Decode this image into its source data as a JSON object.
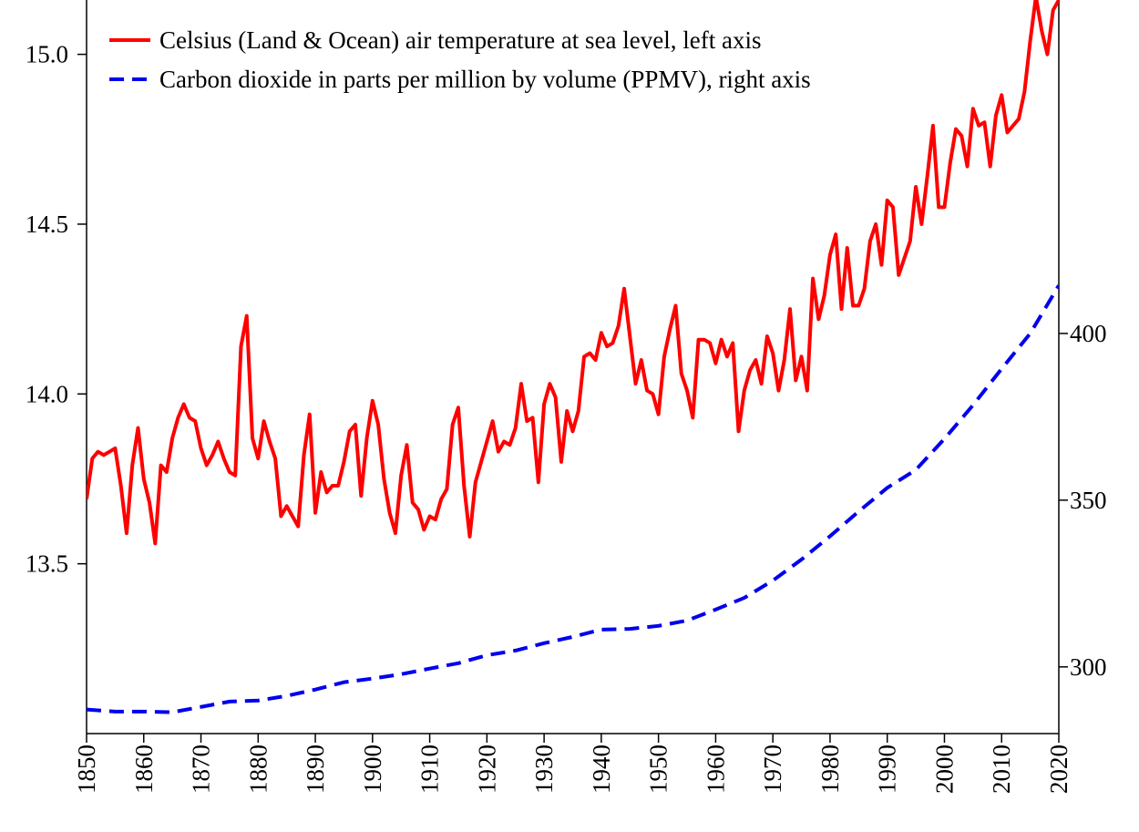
{
  "chart_data": {
    "type": "line",
    "x": [
      1850,
      1851,
      1852,
      1853,
      1854,
      1855,
      1856,
      1857,
      1858,
      1859,
      1860,
      1861,
      1862,
      1863,
      1864,
      1865,
      1866,
      1867,
      1868,
      1869,
      1870,
      1871,
      1872,
      1873,
      1874,
      1875,
      1876,
      1877,
      1878,
      1879,
      1880,
      1881,
      1882,
      1883,
      1884,
      1885,
      1886,
      1887,
      1888,
      1889,
      1890,
      1891,
      1892,
      1893,
      1894,
      1895,
      1896,
      1897,
      1898,
      1899,
      1900,
      1901,
      1902,
      1903,
      1904,
      1905,
      1906,
      1907,
      1908,
      1909,
      1910,
      1911,
      1912,
      1913,
      1914,
      1915,
      1916,
      1917,
      1918,
      1919,
      1920,
      1921,
      1922,
      1923,
      1924,
      1925,
      1926,
      1927,
      1928,
      1929,
      1930,
      1931,
      1932,
      1933,
      1934,
      1935,
      1936,
      1937,
      1938,
      1939,
      1940,
      1941,
      1942,
      1943,
      1944,
      1945,
      1946,
      1947,
      1948,
      1949,
      1950,
      1951,
      1952,
      1953,
      1954,
      1955,
      1956,
      1957,
      1958,
      1959,
      1960,
      1961,
      1962,
      1963,
      1964,
      1965,
      1966,
      1967,
      1968,
      1969,
      1970,
      1971,
      1972,
      1973,
      1974,
      1975,
      1976,
      1977,
      1978,
      1979,
      1980,
      1981,
      1982,
      1983,
      1984,
      1985,
      1986,
      1987,
      1988,
      1989,
      1990,
      1991,
      1992,
      1993,
      1994,
      1995,
      1996,
      1997,
      1998,
      1999,
      2000,
      2001,
      2002,
      2003,
      2004,
      2005,
      2006,
      2007,
      2008,
      2009,
      2010,
      2011,
      2012,
      2013,
      2014,
      2015,
      2016,
      2017,
      2018,
      2019,
      2020
    ],
    "series": [
      {
        "name": "Celsius (Land & Ocean) air temperature at sea level, left axis",
        "color": "#ff0000",
        "axis": "y",
        "style": "solid",
        "values": [
          13.69,
          13.81,
          13.83,
          13.82,
          13.83,
          13.84,
          13.73,
          13.59,
          13.79,
          13.9,
          13.75,
          13.68,
          13.56,
          13.79,
          13.77,
          13.87,
          13.93,
          13.97,
          13.93,
          13.92,
          13.84,
          13.79,
          13.82,
          13.86,
          13.81,
          13.77,
          13.76,
          14.14,
          14.23,
          13.87,
          13.81,
          13.92,
          13.86,
          13.81,
          13.64,
          13.67,
          13.64,
          13.61,
          13.82,
          13.94,
          13.65,
          13.77,
          13.71,
          13.73,
          13.73,
          13.8,
          13.89,
          13.91,
          13.7,
          13.87,
          13.98,
          13.91,
          13.75,
          13.65,
          13.59,
          13.76,
          13.85,
          13.68,
          13.66,
          13.6,
          13.64,
          13.63,
          13.69,
          13.72,
          13.91,
          13.96,
          13.73,
          13.58,
          13.74,
          13.8,
          13.86,
          13.92,
          13.83,
          13.86,
          13.85,
          13.9,
          14.03,
          13.92,
          13.93,
          13.74,
          13.97,
          14.03,
          13.99,
          13.8,
          13.95,
          13.89,
          13.95,
          14.11,
          14.12,
          14.1,
          14.18,
          14.14,
          14.15,
          14.2,
          14.31,
          14.17,
          14.03,
          14.1,
          14.01,
          14.0,
          13.94,
          14.11,
          14.19,
          14.26,
          14.06,
          14.01,
          13.93,
          14.16,
          14.16,
          14.15,
          14.09,
          14.16,
          14.11,
          14.15,
          13.89,
          14.01,
          14.07,
          14.1,
          14.03,
          14.17,
          14.12,
          14.01,
          14.1,
          14.25,
          14.04,
          14.11,
          14.01,
          14.34,
          14.22,
          14.29,
          14.41,
          14.47,
          14.25,
          14.43,
          14.26,
          14.26,
          14.31,
          14.45,
          14.5,
          14.38,
          14.57,
          14.55,
          14.35,
          14.4,
          14.45,
          14.61,
          14.5,
          14.64,
          14.79,
          14.55,
          14.55,
          14.68,
          14.78,
          14.76,
          14.67,
          14.84,
          14.79,
          14.8,
          14.67,
          14.82,
          14.88,
          14.77,
          14.79,
          14.81,
          14.89,
          15.04,
          15.17,
          15.07,
          15.0,
          15.13,
          15.16
        ]
      },
      {
        "name": "Carbon dioxide in parts per million by volume (PPMV), right axis",
        "color": "#0000ee",
        "axis": "y2",
        "style": "dashed",
        "x": [
          1850,
          1855,
          1860,
          1865,
          1870,
          1875,
          1880,
          1885,
          1890,
          1895,
          1900,
          1905,
          1910,
          1915,
          1920,
          1925,
          1930,
          1935,
          1940,
          1945,
          1950,
          1955,
          1960,
          1965,
          1970,
          1975,
          1980,
          1985,
          1990,
          1995,
          2000,
          2005,
          2010,
          2015,
          2020
        ],
        "values": [
          287.2,
          286.6,
          286.6,
          286.4,
          288.0,
          289.6,
          289.9,
          291.3,
          293.2,
          295.4,
          296.5,
          297.8,
          299.5,
          301.1,
          303.5,
          304.9,
          307.1,
          309.0,
          311.2,
          311.4,
          312.3,
          313.9,
          317.2,
          320.7,
          325.9,
          332.2,
          339.2,
          346.6,
          353.7,
          359.1,
          368.4,
          378.5,
          389.4,
          400.0,
          414.4
        ]
      }
    ],
    "xlim": [
      1850,
      2020
    ],
    "xticks": [
      1850,
      1860,
      1870,
      1880,
      1890,
      1900,
      1910,
      1920,
      1930,
      1940,
      1950,
      1960,
      1970,
      1980,
      1990,
      2000,
      2010,
      2020
    ],
    "ylim": [
      13.0,
      15.16
    ],
    "yticks": [
      13.5,
      {
        "value": 14,
        "label": "14.0"
      },
      14.5,
      {
        "value": 15,
        "label": "15.0"
      }
    ],
    "y2lim": [
      280,
      500
    ],
    "y2ticks": [
      300,
      350,
      400
    ],
    "legend": "upper-left"
  }
}
